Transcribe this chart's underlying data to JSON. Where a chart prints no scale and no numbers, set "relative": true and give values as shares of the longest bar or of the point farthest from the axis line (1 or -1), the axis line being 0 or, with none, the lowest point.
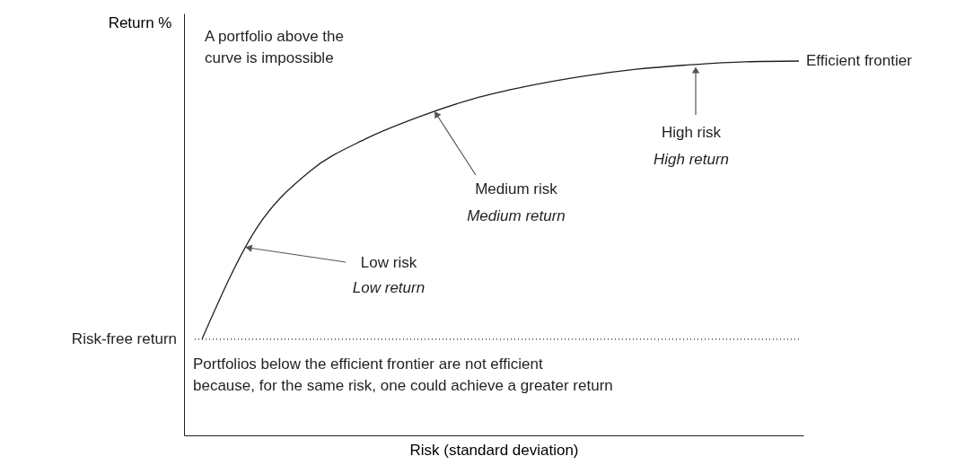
{
  "chart_data": {
    "type": "line",
    "relative": true,
    "xlabel": "Risk (standard deviation)",
    "ylabel": "Return %",
    "categories": [
      null,
      null,
      null,
      null,
      null,
      null,
      null,
      null,
      null,
      null,
      null,
      null
    ],
    "series": [
      {
        "name": "Efficient frontier",
        "color": "#231f20",
        "values": [
          0.257,
          0.552,
          0.707,
          0.791,
          0.851,
          0.899,
          0.933,
          0.959,
          0.978,
          0.99,
          0.998,
          1.0
        ]
      }
    ],
    "ref_lines": [
      {
        "axis": "y",
        "value": 0.257,
        "label": "Risk-free return",
        "line_style": "dotted",
        "color": "#231f20"
      }
    ],
    "annotations": [
      "A portfolio above the\ncurve is impossible",
      "Low risk",
      "Low return",
      "Medium risk",
      "Medium return",
      "High risk",
      "High return",
      "Portfolios below the efficient frontier are not efficient\nbecause, for the same risk, one could achieve a greater return"
    ],
    "tick_labels": false,
    "grid": false,
    "marker": "none",
    "line_style": "solid"
  }
}
